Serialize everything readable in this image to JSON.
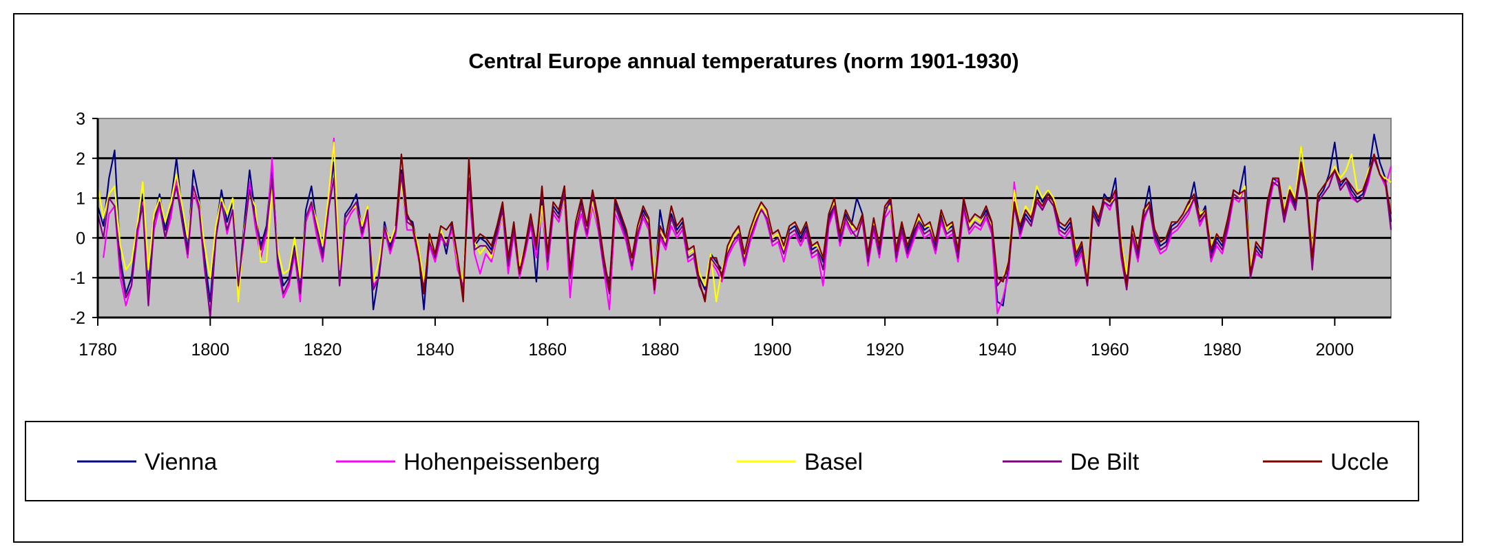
{
  "chart_data": {
    "type": "line",
    "title": "Central Europe annual temperatures (norm 1901-1930)",
    "xlabel": "",
    "ylabel": "",
    "xlim": [
      1780,
      2010
    ],
    "ylim": [
      -2,
      3
    ],
    "xticks": [
      1780,
      1800,
      1820,
      1840,
      1860,
      1880,
      1900,
      1920,
      1940,
      1960,
      1980,
      2000
    ],
    "yticks": [
      3,
      2,
      1,
      0,
      -1,
      -2
    ],
    "grid": "horizontal",
    "plot_background": "#c0c0c0",
    "legend_position": "bottom",
    "series": [
      {
        "name": "Vienna",
        "color": "#000080",
        "start_year": 1780,
        "values": [
          0.8,
          0.3,
          1.5,
          2.2,
          -0.5,
          -1.4,
          -1.0,
          0.2,
          1.1,
          -1.2,
          0.5,
          1.1,
          0.2,
          0.9,
          2.0,
          0.6,
          -0.3,
          1.7,
          1.0,
          -0.5,
          -1.6,
          0.2,
          1.2,
          0.4,
          0.9,
          -1.3,
          0.3,
          1.7,
          0.6,
          -0.2,
          0.3,
          1.8,
          -0.5,
          -1.2,
          -1.0,
          -0.2,
          -1.3,
          0.7,
          1.3,
          0.3,
          -0.4,
          0.9,
          1.9,
          -1.0,
          0.6,
          0.8,
          1.1,
          0.2,
          0.8,
          -1.8,
          -0.9,
          0.4,
          -0.2,
          0.3,
          1.7,
          0.5,
          0.4,
          -0.3,
          -1.8,
          0.0,
          -0.6,
          0.2,
          -0.4,
          0.4,
          -0.6,
          -1.1,
          1.3,
          -0.2,
          0.0,
          -0.1,
          -0.3,
          0.2,
          0.8,
          -0.6,
          0.3,
          -0.8,
          -0.2,
          0.5,
          -1.1,
          1.0,
          -0.5,
          0.8,
          0.6,
          1.3,
          -0.8,
          0.3,
          0.9,
          0.2,
          1.0,
          0.4,
          -0.6,
          -1.2,
          0.9,
          0.5,
          0.1,
          -0.6,
          0.2,
          0.7,
          0.4,
          -1.2,
          0.7,
          -0.1,
          0.6,
          0.2,
          0.4,
          -0.4,
          -0.3,
          -1.0,
          -1.3,
          -0.4,
          -0.6,
          -0.8,
          -0.3,
          0.0,
          0.2,
          -0.5,
          0.1,
          0.5,
          0.8,
          0.6,
          0.0,
          0.1,
          -0.3,
          0.2,
          0.3,
          0.0,
          0.3,
          -0.3,
          -0.2,
          -0.6,
          0.5,
          0.9,
          0.0,
          0.6,
          0.3,
          1.0,
          0.6,
          -0.5,
          0.4,
          -0.3,
          0.7,
          0.9,
          -0.4,
          0.3,
          -0.3,
          0.1,
          0.5,
          0.2,
          0.3,
          -0.2,
          0.6,
          0.2,
          0.3,
          -0.4,
          0.9,
          0.3,
          0.5,
          0.4,
          0.7,
          0.3,
          -1.6,
          -1.7,
          -0.7,
          0.9,
          0.2,
          0.6,
          0.4,
          1.2,
          0.9,
          1.2,
          0.9,
          0.3,
          0.2,
          0.4,
          -0.5,
          -0.2,
          -1.0,
          0.7,
          0.4,
          1.1,
          0.9,
          1.5,
          -0.3,
          -1.1,
          0.2,
          -0.4,
          0.6,
          1.3,
          0.1,
          -0.2,
          -0.1,
          0.3,
          0.4,
          0.6,
          0.8,
          1.4,
          0.5,
          0.8,
          -0.4,
          0.0,
          -0.2,
          0.4,
          1.2,
          1.1,
          1.8,
          -0.9,
          -0.2,
          -0.4,
          0.8,
          1.5,
          1.4,
          0.5,
          1.2,
          0.8,
          2.3,
          1.1,
          -0.6,
          1.0,
          1.2,
          1.6,
          2.4,
          1.3,
          1.5,
          1.2,
          1.0,
          1.1,
          1.6,
          2.6,
          1.9,
          1.5,
          0.4
        ]
      },
      {
        "name": "Hohenpeissenberg",
        "color": "#ff00ff",
        "start_year": 1781,
        "values": [
          -0.5,
          0.6,
          0.8,
          -1.0,
          -1.7,
          -1.2,
          0.0,
          0.9,
          -1.5,
          0.2,
          0.8,
          0.0,
          0.5,
          1.5,
          0.4,
          -0.5,
          1.2,
          0.7,
          -0.8,
          -1.9,
          0.0,
          0.9,
          0.1,
          0.7,
          -1.4,
          0.0,
          1.4,
          0.3,
          -0.5,
          0.1,
          2.0,
          -0.7,
          -1.5,
          -1.2,
          -0.4,
          -1.6,
          0.4,
          0.8,
          0.0,
          -0.6,
          0.6,
          2.5,
          -1.2,
          0.3,
          0.6,
          0.8,
          0.0,
          0.6,
          -1.2,
          -1.0,
          0.2,
          -0.4,
          0.1,
          1.5,
          0.2,
          0.2,
          -0.5,
          -1.2,
          -0.2,
          -0.6,
          0.0,
          -0.2,
          0.2,
          -0.8,
          -1.2,
          1.2,
          -0.4,
          -0.9,
          -0.4,
          -0.6,
          0.0,
          0.6,
          -0.9,
          0.1,
          -1.0,
          -0.4,
          0.3,
          -0.5,
          0.8,
          -0.8,
          0.6,
          0.4,
          1.0,
          -1.5,
          0.1,
          0.6,
          0.0,
          0.8,
          0.2,
          -0.8,
          -1.8,
          0.6,
          0.3,
          -0.1,
          -0.8,
          0.0,
          0.5,
          0.2,
          -1.4,
          0.0,
          -0.3,
          0.3,
          0.0,
          0.2,
          -0.6,
          -0.5,
          -1.2,
          -1.5,
          -0.6,
          -0.8,
          -1.1,
          -0.5,
          -0.2,
          0.0,
          -0.7,
          -0.1,
          0.3,
          0.8,
          0.4,
          -0.2,
          -0.1,
          -0.6,
          0.0,
          0.1,
          -0.2,
          0.1,
          -0.5,
          -0.4,
          -1.2,
          0.3,
          0.7,
          -0.2,
          0.4,
          0.1,
          0.2,
          0.4,
          -0.7,
          0.2,
          -0.5,
          0.5,
          0.7,
          -0.6,
          0.1,
          -0.5,
          -0.1,
          0.3,
          0.0,
          0.1,
          -0.4,
          0.4,
          0.0,
          0.1,
          -0.6,
          0.7,
          0.1,
          0.3,
          0.2,
          0.5,
          0.1,
          -1.9,
          -1.5,
          -0.9,
          1.4,
          0.0,
          0.5,
          0.3,
          1.0,
          0.7,
          1.0,
          0.8,
          0.1,
          0.0,
          0.2,
          -0.7,
          -0.4,
          -1.2,
          0.6,
          0.3,
          0.9,
          0.7,
          1.1,
          -0.5,
          -1.3,
          0.0,
          -0.6,
          0.4,
          0.8,
          -0.1,
          -0.4,
          -0.3,
          0.1,
          0.2,
          0.4,
          0.6,
          1.0,
          0.3,
          0.6,
          -0.6,
          -0.2,
          -0.4,
          0.2,
          1.0,
          0.9,
          1.3,
          -1.0,
          -0.4,
          -0.5,
          0.6,
          1.3,
          1.5,
          0.4,
          1.0,
          0.7,
          1.8,
          1.0,
          -0.7,
          0.9,
          1.1,
          1.3,
          1.8,
          1.2,
          1.4,
          1.0,
          0.9,
          1.0,
          1.4,
          2.1,
          1.6,
          1.3,
          1.8
        ]
      },
      {
        "name": "Basel",
        "color": "#ffff00",
        "start_year": 1780,
        "values": [
          1.3,
          0.5,
          1.1,
          1.3,
          -0.2,
          -0.8,
          -0.6,
          0.3,
          1.4,
          -0.8,
          0.6,
          1.0,
          0.4,
          0.9,
          1.6,
          0.8,
          0.0,
          1.2,
          0.9,
          -0.2,
          -1.0,
          0.3,
          1.0,
          0.6,
          1.0,
          -1.6,
          0.2,
          1.1,
          0.8,
          -0.6,
          -0.6,
          1.2,
          -0.3,
          -0.9,
          -0.8,
          0.0,
          -1.0,
          0.5,
          0.9,
          0.4,
          -0.2,
          1.0,
          2.4,
          -0.8,
          0.5,
          0.7,
          0.8,
          0.3,
          0.8,
          -1.1,
          -0.6,
          0.3,
          -0.1,
          0.3,
          1.4,
          0.4,
          0.3,
          -0.2,
          -1.1,
          0.0,
          -0.5,
          0.2,
          -0.2,
          0.3,
          -0.6,
          -1.1,
          1.4,
          -0.1,
          -0.4,
          -0.2,
          -0.5,
          0.1,
          0.6,
          -0.5,
          0.2,
          -0.7,
          -0.2,
          0.6,
          -0.3,
          0.8,
          -0.4,
          0.7,
          0.5,
          1.0,
          -0.9,
          0.3,
          0.8,
          0.2,
          0.9,
          0.3,
          -0.6,
          -1.4,
          0.8,
          0.4,
          0.0,
          -0.6,
          0.2,
          0.6,
          0.4,
          -1.0,
          0.3,
          -0.1,
          0.5,
          0.1,
          0.3,
          -0.4,
          -0.3,
          -0.9,
          -1.2,
          -0.4,
          -1.6,
          -0.8,
          -0.3,
          0.0,
          0.2,
          -0.5,
          0.1,
          0.5,
          0.8,
          0.6,
          0.0,
          0.1,
          -0.3,
          0.3,
          0.4,
          0.1,
          0.4,
          -0.2,
          -0.2,
          -0.5,
          0.6,
          0.9,
          0.1,
          0.5,
          0.3,
          0.2,
          0.5,
          -0.4,
          0.4,
          -0.2,
          0.7,
          0.8,
          -0.3,
          0.4,
          -0.2,
          0.2,
          0.5,
          0.3,
          0.3,
          -0.1,
          0.7,
          0.2,
          0.4,
          -0.3,
          0.8,
          0.3,
          0.5,
          0.4,
          0.6,
          0.3,
          -1.2,
          -1.0,
          -0.6,
          1.2,
          0.3,
          0.8,
          0.6,
          1.3,
          1.0,
          1.2,
          1.0,
          0.4,
          0.3,
          0.5,
          -0.3,
          -0.1,
          -0.9,
          0.8,
          0.5,
          1.0,
          0.9,
          1.0,
          -0.1,
          -0.9,
          0.2,
          -0.3,
          0.7,
          0.8,
          0.2,
          -0.1,
          0.0,
          0.4,
          0.4,
          0.6,
          0.8,
          1.0,
          0.6,
          0.7,
          -0.2,
          0.1,
          -0.1,
          0.5,
          1.1,
          1.0,
          1.3,
          -0.7,
          -0.1,
          -0.3,
          0.8,
          1.5,
          1.5,
          0.7,
          1.3,
          1.0,
          2.3,
          1.2,
          -0.3,
          1.1,
          1.3,
          1.5,
          1.8,
          1.5,
          1.7,
          2.1,
          1.2,
          1.2,
          1.7,
          2.0,
          1.6,
          1.5,
          1.4
        ]
      },
      {
        "name": "De Bilt",
        "color": "#800080",
        "start_year": 1780,
        "values": [
          0.6,
          0.0,
          1.0,
          0.8,
          -0.7,
          -1.5,
          -1.2,
          0.2,
          0.8,
          -1.7,
          0.4,
          0.9,
          0.0,
          0.7,
          1.3,
          0.4,
          -0.4,
          1.3,
          0.8,
          -0.7,
          -2.0,
          0.0,
          0.9,
          0.2,
          0.7,
          -1.2,
          0.1,
          1.2,
          0.5,
          -0.3,
          0.2,
          1.5,
          -0.6,
          -1.4,
          -1.1,
          -0.3,
          -1.4,
          0.5,
          0.9,
          0.2,
          -0.5,
          0.7,
          1.5,
          -1.2,
          0.5,
          0.7,
          0.9,
          0.1,
          0.7,
          -1.3,
          -1.0,
          0.3,
          -0.3,
          0.2,
          1.6,
          0.4,
          0.3,
          -0.4,
          -1.3,
          -0.1,
          -0.5,
          0.1,
          -0.2,
          0.3,
          -0.5,
          -1.4,
          1.5,
          -0.3,
          -0.2,
          -0.2,
          -0.4,
          0.1,
          0.7,
          -0.7,
          0.2,
          -0.9,
          -0.3,
          0.4,
          -0.3,
          1.2,
          -0.6,
          0.7,
          0.5,
          1.1,
          -1.0,
          0.2,
          0.8,
          0.1,
          1.1,
          0.3,
          -0.7,
          -1.4,
          0.8,
          0.4,
          0.0,
          -0.7,
          0.1,
          0.6,
          0.3,
          -1.3,
          0.1,
          -0.2,
          0.5,
          0.1,
          0.3,
          -0.5,
          -0.4,
          -1.2,
          -1.5,
          -0.5,
          -0.7,
          -0.9,
          -0.4,
          -0.1,
          0.1,
          -0.6,
          0.0,
          0.4,
          0.7,
          0.5,
          -0.1,
          0.0,
          -0.4,
          0.1,
          0.2,
          -0.1,
          0.2,
          -0.4,
          -0.3,
          -0.8,
          0.4,
          0.8,
          -0.1,
          0.5,
          0.2,
          0.0,
          0.5,
          -0.6,
          0.3,
          -0.4,
          0.6,
          1.0,
          -0.5,
          0.2,
          -0.4,
          0.0,
          0.4,
          0.1,
          0.2,
          -0.3,
          0.5,
          0.1,
          0.2,
          -0.5,
          0.8,
          0.2,
          0.4,
          0.3,
          0.6,
          0.2,
          -1.2,
          -1.0,
          -0.8,
          0.8,
          0.1,
          0.5,
          0.3,
          0.9,
          0.7,
          1.0,
          0.8,
          0.2,
          0.1,
          0.3,
          -0.6,
          -0.3,
          -1.2,
          0.6,
          0.3,
          0.9,
          0.8,
          1.0,
          -0.4,
          -1.3,
          0.1,
          -0.5,
          0.5,
          0.8,
          0.0,
          -0.3,
          -0.2,
          0.2,
          0.3,
          0.5,
          0.7,
          1.0,
          0.4,
          0.6,
          -0.5,
          -0.1,
          -0.3,
          0.3,
          1.1,
          1.0,
          1.0,
          -1.0,
          -0.3,
          -0.5,
          0.7,
          1.4,
          1.3,
          0.4,
          1.1,
          0.7,
          1.7,
          1.0,
          -0.8,
          0.9,
          1.1,
          1.3,
          1.7,
          1.2,
          1.4,
          1.1,
          0.9,
          1.0,
          1.5,
          2.0,
          1.6,
          1.4,
          0.2
        ]
      },
      {
        "name": "Uccle",
        "color": "#800000",
        "start_year": 1833,
        "values": [
          0.3,
          2.1,
          0.6,
          0.3,
          -0.4,
          -1.4,
          0.1,
          -0.4,
          0.3,
          0.2,
          0.4,
          -0.5,
          -1.6,
          2.0,
          -0.1,
          0.1,
          0.0,
          -0.2,
          0.3,
          0.9,
          -0.5,
          0.4,
          -0.9,
          -0.2,
          0.6,
          -0.2,
          1.3,
          -0.4,
          0.9,
          0.7,
          1.3,
          -0.9,
          0.4,
          1.0,
          0.3,
          1.2,
          0.5,
          -0.5,
          -1.3,
          1.0,
          0.6,
          0.2,
          -0.5,
          0.3,
          0.8,
          0.5,
          -1.3,
          0.3,
          0.0,
          0.8,
          0.3,
          0.5,
          -0.3,
          -0.2,
          -1.1,
          -1.6,
          -0.5,
          -0.5,
          -1.0,
          -0.2,
          0.1,
          0.3,
          -0.4,
          0.2,
          0.6,
          0.9,
          0.7,
          0.1,
          0.2,
          -0.2,
          0.3,
          0.4,
          0.1,
          0.4,
          -0.2,
          -0.1,
          -0.5,
          0.6,
          1.0,
          0.1,
          0.7,
          0.4,
          0.2,
          0.6,
          -0.4,
          0.5,
          -0.2,
          0.8,
          1.0,
          -0.3,
          0.4,
          -0.2,
          0.2,
          0.6,
          0.3,
          0.4,
          -0.1,
          0.7,
          0.3,
          0.4,
          -0.3,
          1.0,
          0.4,
          0.6,
          0.5,
          0.8,
          0.4,
          -1.0,
          -1.1,
          -0.6,
          0.9,
          0.3,
          0.7,
          0.5,
          1.0,
          0.8,
          1.1,
          0.9,
          0.4,
          0.3,
          0.5,
          -0.4,
          -0.1,
          -1.1,
          0.8,
          0.5,
          1.0,
          0.9,
          1.2,
          -0.2,
          -1.2,
          0.3,
          -0.3,
          0.7,
          0.9,
          0.2,
          -0.1,
          0.0,
          0.4,
          0.4,
          0.6,
          0.9,
          1.1,
          0.5,
          0.7,
          -0.3,
          0.1,
          -0.1,
          0.5,
          1.2,
          1.1,
          1.2,
          -0.9,
          -0.1,
          -0.3,
          0.9,
          1.5,
          1.5,
          0.6,
          1.2,
          0.9,
          1.9,
          1.2,
          -0.5,
          1.1,
          1.3,
          1.5,
          1.7,
          1.4,
          1.5,
          1.3,
          1.1,
          1.2,
          1.6,
          2.1,
          1.6,
          1.4,
          0.6
        ]
      }
    ]
  }
}
